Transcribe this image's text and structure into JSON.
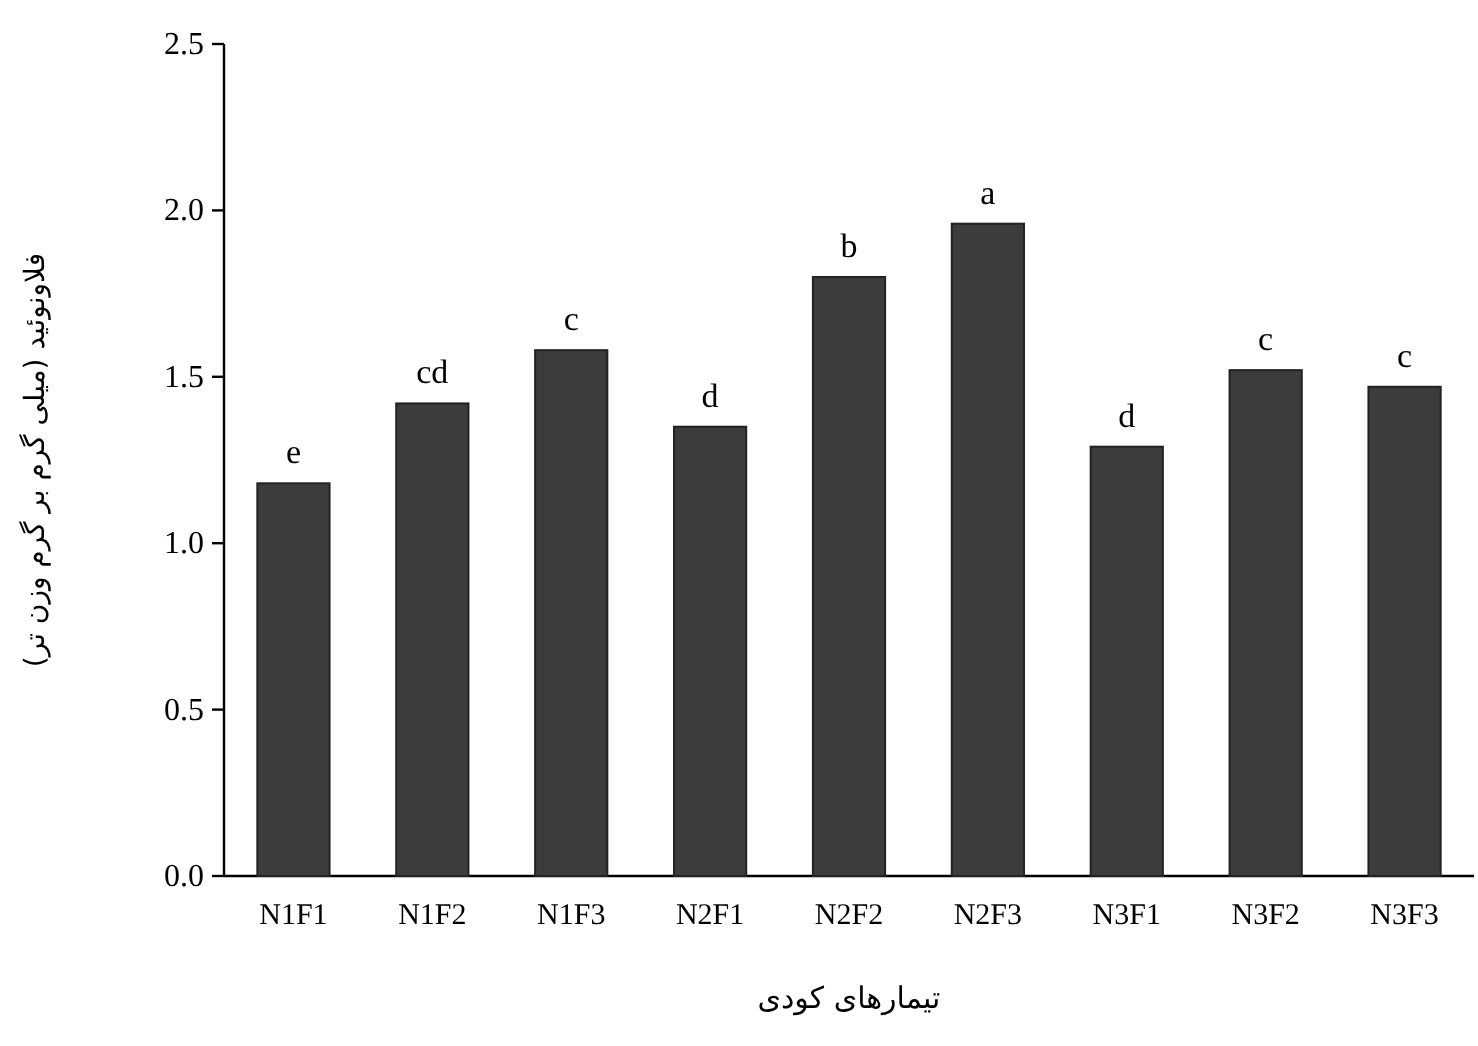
{
  "chart_data": {
    "type": "bar",
    "xlabel": "تیمارهای کودی",
    "ylabel": "فلاونوئید (میلی گرم بر گرم وزن تر)",
    "categories": [
      "N1F1",
      "N1F2",
      "N1F3",
      "N2F1",
      "N2F2",
      "N2F3",
      "N3F1",
      "N3F2",
      "N3F3"
    ],
    "values": [
      1.18,
      1.42,
      1.58,
      1.35,
      1.8,
      1.96,
      1.29,
      1.52,
      1.47
    ],
    "color": "#3c3c3c",
    "ylim": [
      0,
      2.5
    ],
    "yticks": [
      {
        "value": 0,
        "label": "0.0"
      },
      0.5,
      {
        "value": 1,
        "label": "1.0"
      },
      1.5,
      {
        "value": 2,
        "label": "2.0"
      },
      2.5
    ],
    "annotations": [
      {
        "text": "e",
        "x": "N1F1",
        "y": 1.18
      },
      {
        "text": "cd",
        "x": "N1F2",
        "y": 1.42
      },
      {
        "text": "c",
        "x": "N1F3",
        "y": 1.58
      },
      {
        "text": "d",
        "x": "N2F1",
        "y": 1.35
      },
      {
        "text": "b",
        "x": "N2F2",
        "y": 1.8
      },
      {
        "text": "a",
        "x": "N2F3",
        "y": 1.96
      },
      {
        "text": "d",
        "x": "N3F1",
        "y": 1.29
      },
      {
        "text": "c",
        "x": "N3F2",
        "y": 1.52
      },
      {
        "text": "c",
        "x": "N3F3",
        "y": 1.47
      }
    ]
  }
}
